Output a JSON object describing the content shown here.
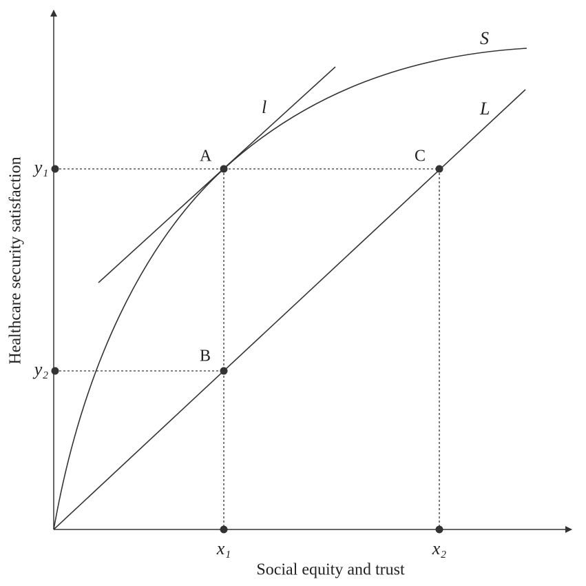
{
  "axes": {
    "x_label": "Social equity and trust",
    "y_label": "Healthcare security satisfaction"
  },
  "ticks": {
    "x1": "x₁",
    "x2": "x₂",
    "y1": "y₁",
    "y2": "y₂"
  },
  "curves": {
    "S": "S",
    "L": "L",
    "l": "l"
  },
  "points": {
    "A": "A",
    "B": "B",
    "C": "C"
  }
}
